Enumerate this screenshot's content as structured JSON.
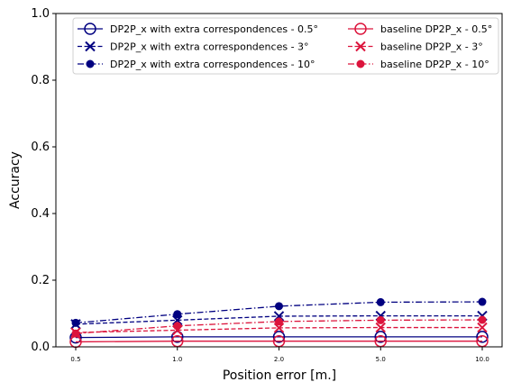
{
  "chart_data": {
    "type": "line",
    "xlabel": "Position error [m.]",
    "ylabel": "Accuracy",
    "categories": [
      "0.5",
      "1.0",
      "2.0",
      "5.0",
      "10.0"
    ],
    "ylim": [
      0,
      1.0
    ],
    "yticks": [
      "0.0",
      "0.2",
      "0.4",
      "0.6",
      "0.8",
      "1.0"
    ],
    "grid": false,
    "legend_position": "top",
    "series": [
      {
        "name": "DP2P_x with extra correspondences - 0.5°",
        "color": "#000080",
        "marker": "open-circle",
        "linestyle": "solid",
        "values": [
          0.028,
          0.03,
          0.03,
          0.03,
          0.03
        ]
      },
      {
        "name": "DP2P_x with extra correspondences - 3°",
        "color": "#000080",
        "marker": "x",
        "linestyle": "dashed",
        "values": [
          0.068,
          0.08,
          0.092,
          0.093,
          0.093
        ]
      },
      {
        "name": "DP2P_x with extra correspondences - 10°",
        "color": "#000080",
        "marker": "filled-circle",
        "linestyle": "dashdot",
        "values": [
          0.072,
          0.098,
          0.122,
          0.134,
          0.135
        ]
      },
      {
        "name": "baseline DP2P_x - 0.5°",
        "color": "#dc143c",
        "marker": "open-circle",
        "linestyle": "solid",
        "values": [
          0.015,
          0.017,
          0.017,
          0.017,
          0.017
        ]
      },
      {
        "name": "baseline DP2P_x - 3°",
        "color": "#dc143c",
        "marker": "x",
        "linestyle": "dashed",
        "values": [
          0.043,
          0.05,
          0.057,
          0.058,
          0.058
        ]
      },
      {
        "name": "baseline DP2P_x - 10°",
        "color": "#dc143c",
        "marker": "filled-circle",
        "linestyle": "dashdot",
        "values": [
          0.04,
          0.063,
          0.076,
          0.08,
          0.081
        ]
      }
    ]
  }
}
